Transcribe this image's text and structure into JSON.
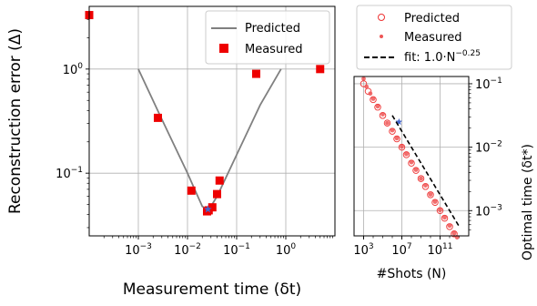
{
  "chart_data": [
    {
      "type": "scatter",
      "xlabel": "Measurement time (δt)",
      "ylabel": "Reconstruction error (Δ)",
      "xscale": "log",
      "yscale": "log",
      "xlim": [
        0.0001,
        10
      ],
      "ylim": [
        0.025,
        4
      ],
      "grid": true,
      "legend_position": "top-right",
      "x_ticks": [
        {
          "value": 0.001,
          "base": "10",
          "exp": "−3"
        },
        {
          "value": 0.01,
          "base": "10",
          "exp": "−2"
        },
        {
          "value": 0.1,
          "base": "10",
          "exp": "−1"
        },
        {
          "value": 1,
          "base": "10",
          "exp": "0"
        }
      ],
      "y_ticks": [
        {
          "value": 0.1,
          "base": "10",
          "exp": "−1"
        },
        {
          "value": 1,
          "base": "10",
          "exp": "0"
        }
      ],
      "series": [
        {
          "name": "Predicted",
          "kind": "line",
          "color": "#808080",
          "x": [
            0.001,
            0.003,
            0.01,
            0.015,
            0.02,
            0.025,
            0.03,
            0.04,
            0.05,
            0.1,
            0.3,
            0.8
          ],
          "y": [
            1.0,
            0.33,
            0.1,
            0.065,
            0.048,
            0.045,
            0.048,
            0.06,
            0.075,
            0.15,
            0.45,
            1.0
          ]
        },
        {
          "name": "Measured",
          "kind": "marker",
          "marker": "square",
          "color": "#ee0000",
          "x": [
            0.0001,
            0.0025,
            0.012,
            0.025,
            0.027,
            0.032,
            0.04,
            0.045,
            0.25,
            5.0
          ],
          "y": [
            3.3,
            0.34,
            0.068,
            0.043,
            0.044,
            0.047,
            0.063,
            0.085,
            0.9,
            1.0
          ]
        },
        {
          "name": "",
          "kind": "marker",
          "marker": "star",
          "color": "#4466cc",
          "x": [
            0.026
          ],
          "y": [
            0.045
          ]
        }
      ]
    },
    {
      "type": "scatter",
      "xlabel": "#Shots (N)",
      "ylabel": "Optimal time (δt*)",
      "xscale": "log",
      "yscale": "log",
      "xlim": [
        100,
        100000000000000.0
      ],
      "ylim": [
        0.0004,
        0.13
      ],
      "grid": true,
      "legend_position": "above",
      "x_ticks": [
        {
          "value": 1000,
          "base": "10",
          "exp": "3"
        },
        {
          "value": 10000000,
          "base": "10",
          "exp": "7"
        },
        {
          "value": 100000000000,
          "base": "10",
          "exp": "11"
        }
      ],
      "y_ticks": [
        {
          "value": 0.1,
          "base": "10",
          "exp": "−1"
        },
        {
          "value": 0.01,
          "base": "10",
          "exp": "−2"
        },
        {
          "value": 0.001,
          "base": "10",
          "exp": "−3"
        }
      ],
      "fit": {
        "name": "fit: 1.0·N",
        "exp": "−0.25",
        "coef": 1.0,
        "power": -0.25,
        "x_range": [
          1000000.0,
          10000000000000.0
        ],
        "color": "#000000"
      },
      "series": [
        {
          "name": "Predicted",
          "kind": "marker",
          "marker": "open-circle",
          "color": "#ee3333",
          "x": [
            1000,
            3000,
            10000,
            30000,
            100000,
            300000,
            1000000,
            3000000,
            10000000,
            30000000,
            100000000,
            300000000,
            1000000000,
            3000000000,
            10000000000,
            30000000000,
            100000000000,
            300000000000,
            1000000000000,
            3000000000000
          ],
          "y": [
            0.1,
            0.0759,
            0.0562,
            0.0427,
            0.0316,
            0.024,
            0.0178,
            0.0135,
            0.01,
            0.0076,
            0.0056,
            0.0043,
            0.0032,
            0.0024,
            0.00178,
            0.00135,
            0.001,
            0.00076,
            0.00056,
            0.00043
          ]
        },
        {
          "name": "Measured",
          "kind": "marker",
          "marker": "dot",
          "color": "#ee5555",
          "x": [
            1000,
            2000,
            5000,
            10000,
            30000,
            100000,
            300000,
            1000000,
            3000000,
            10000000,
            30000000,
            100000000,
            300000000,
            1000000000,
            3000000000,
            10000000000,
            30000000000,
            100000000000,
            300000000000,
            1000000000000,
            3000000000000,
            6000000000000
          ],
          "y": [
            0.12,
            0.09,
            0.07,
            0.058,
            0.044,
            0.033,
            0.024,
            0.0185,
            0.0138,
            0.0102,
            0.0078,
            0.0058,
            0.0044,
            0.0032,
            0.0025,
            0.0018,
            0.00138,
            0.00102,
            0.00078,
            0.00058,
            0.00044,
            0.00038
          ]
        },
        {
          "name": "",
          "kind": "marker",
          "marker": "star",
          "color": "#4466cc",
          "x": [
            5000000
          ],
          "y": [
            0.025
          ]
        }
      ]
    }
  ]
}
